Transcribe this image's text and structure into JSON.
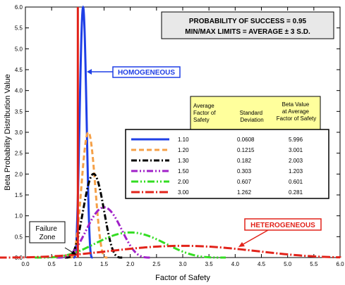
{
  "chart_data": {
    "type": "line",
    "xlabel": "Factor of Safety",
    "ylabel": "Beta Probability Distribution Value",
    "xlim": [
      0,
      6
    ],
    "ylim": [
      0,
      6
    ],
    "x_ticks": [
      "0.0",
      "0.5",
      "1.0",
      "1.5",
      "2.0",
      "2.5",
      "3.0",
      "3.5",
      "4.0",
      "4.5",
      "5.0",
      "5.5",
      "6.0"
    ],
    "y_ticks": [
      "0.0",
      "0.5",
      "1.0",
      "1.5",
      "2.0",
      "2.5",
      "3.0",
      "3.5",
      "4.0",
      "4.5",
      "5.0",
      "5.5",
      "6.0"
    ],
    "grid": false,
    "reference_line_x": 1.0,
    "info_box": {
      "line1": "PROBABILITY OF SUCCESS = 0.95",
      "line2": "MIN/MAX LIMITS = AVERAGE ± 3 S.D."
    },
    "table_headers": {
      "col1": [
        "Average",
        "Factor of",
        "Safety"
      ],
      "col2": [
        "Standard",
        "Deviation"
      ],
      "col3": [
        "Beta Value",
        "at Average",
        "Factor of Safety"
      ]
    },
    "series": [
      {
        "avg": "1.10",
        "sd": "0.0608",
        "beta": "5.996",
        "mean": 1.1,
        "sdv": 0.0608,
        "peak": 5.996,
        "color": "#1f3fe6",
        "dash": ""
      },
      {
        "avg": "1.20",
        "sd": "0.1215",
        "beta": "3.001",
        "mean": 1.2,
        "sdv": 0.1215,
        "peak": 3.001,
        "color": "#f5a047",
        "dash": "7,4"
      },
      {
        "avg": "1.30",
        "sd": "0.182",
        "beta": "2.003",
        "mean": 1.3,
        "sdv": 0.182,
        "peak": 2.003,
        "color": "#000000",
        "dash": "8,3,2,3"
      },
      {
        "avg": "1.50",
        "sd": "0.303",
        "beta": "1.203",
        "mean": 1.5,
        "sdv": 0.303,
        "peak": 1.203,
        "color": "#a020c8",
        "dash": "9,3,2,3,2,3"
      },
      {
        "avg": "2.00",
        "sd": "0.607",
        "beta": "0.601",
        "mean": 2.0,
        "sdv": 0.607,
        "peak": 0.601,
        "color": "#33dd22",
        "dash": "10,3,2,3,2,3"
      },
      {
        "avg": "3.00",
        "sd": "1.262",
        "beta": "0.281",
        "mean": 3.0,
        "sdv": 1.262,
        "peak": 0.281,
        "color": "#e2231a",
        "dash": "12,3,2,3"
      }
    ],
    "annotations": {
      "homogeneous": "HOMOGENEOUS",
      "heterogeneous": "HETEROGENEOUS",
      "failure_zone": [
        "Failure",
        "Zone"
      ]
    },
    "colors": {
      "reference_line": "#e2231a",
      "homogeneous_label": "#1f3fe6",
      "heterogeneous_label": "#e2231a",
      "table_header_bg": "#ffff9c",
      "info_box_bg": "#e8e8e8"
    }
  }
}
